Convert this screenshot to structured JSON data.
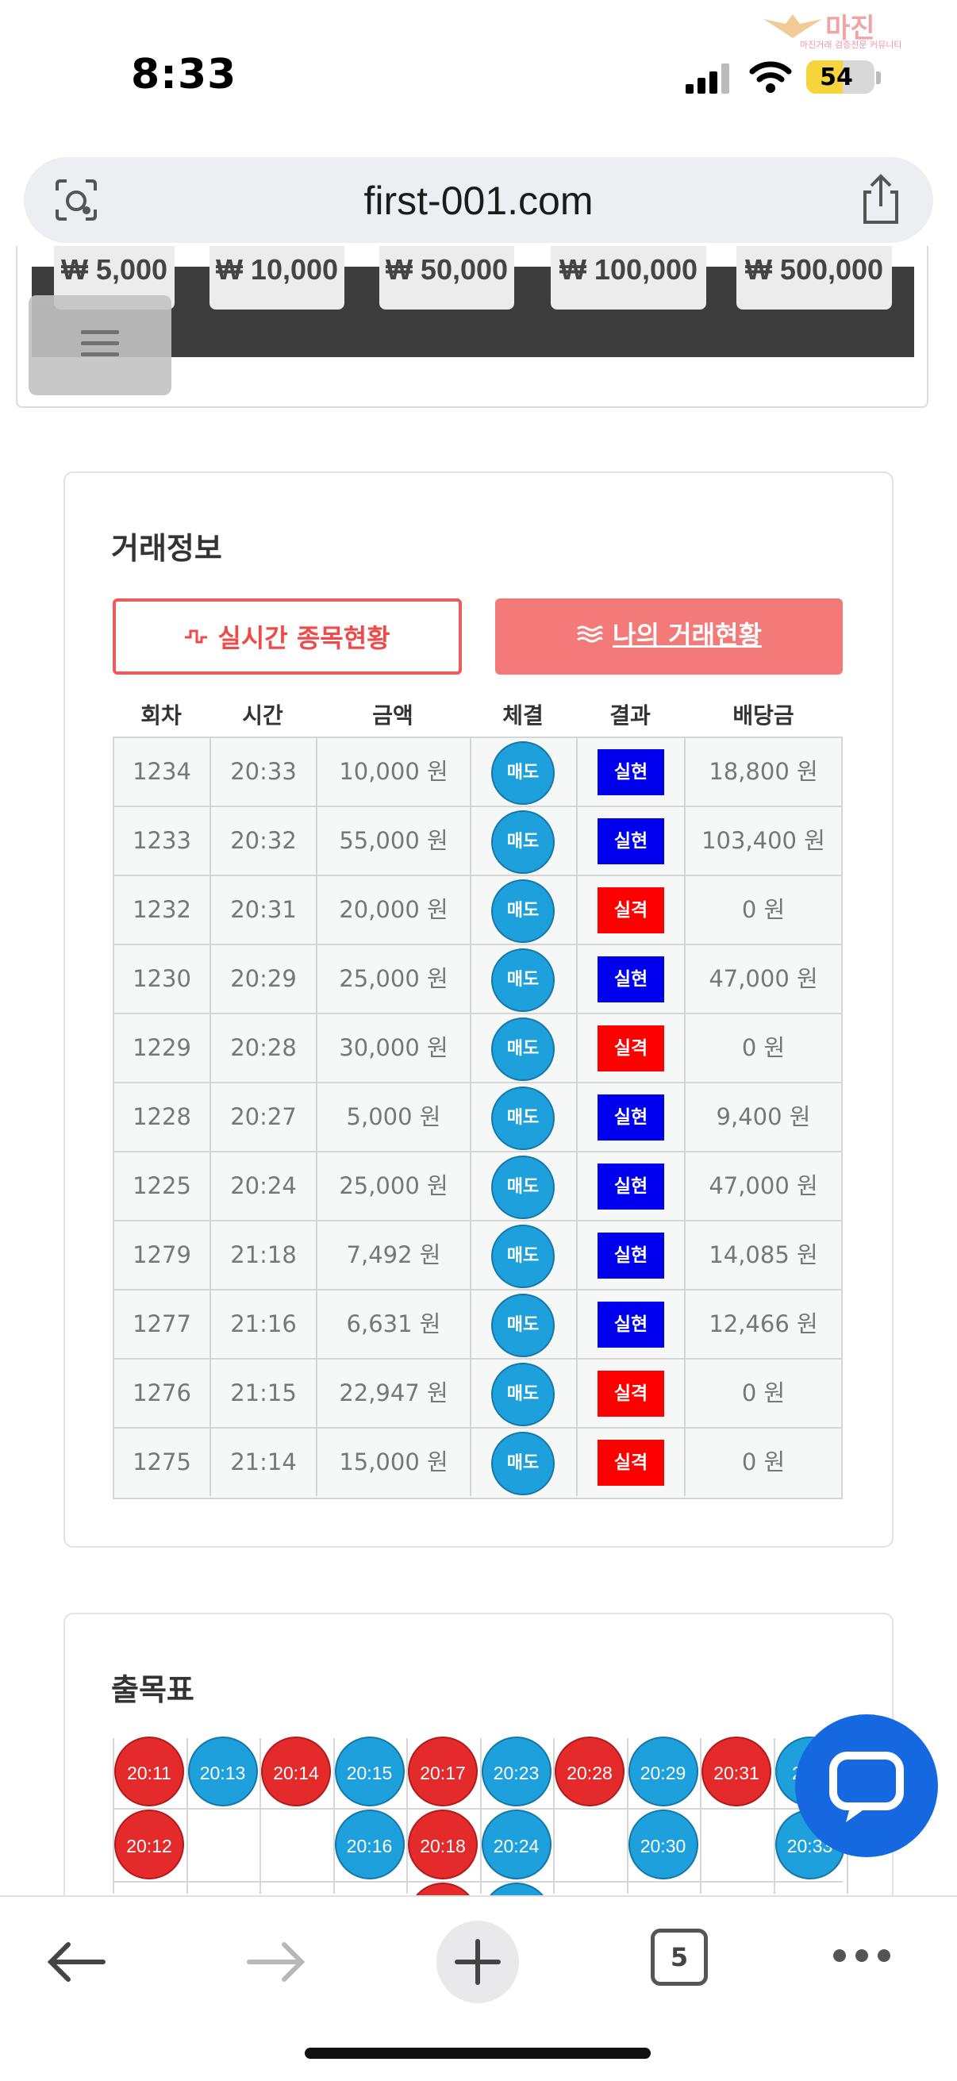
{
  "status_bar": {
    "time": "8:33",
    "battery": "54",
    "battery_level": 0.54
  },
  "watermark": {
    "brand": "마진",
    "tagline": "마진거래 검증전문 커뮤니티"
  },
  "browser": {
    "url": "first-001.com",
    "tab_count": "5"
  },
  "chips": [
    "₩ 5,000",
    "₩ 10,000",
    "₩ 50,000",
    "₩ 100,000",
    "₩ 500,000"
  ],
  "trade_info": {
    "title": "거래정보",
    "tab_live": "실시간 종목현황",
    "tab_mine": "나의 거래현황",
    "headers": [
      "회차",
      "시간",
      "금액",
      "체결",
      "결과",
      "배당금"
    ],
    "rows": [
      {
        "round": "1234",
        "time": "20:33",
        "amount": "10,000 원",
        "fill": "매도",
        "result": "실현",
        "payout": "18,800 원"
      },
      {
        "round": "1233",
        "time": "20:32",
        "amount": "55,000 원",
        "fill": "매도",
        "result": "실현",
        "payout": "103,400 원"
      },
      {
        "round": "1232",
        "time": "20:31",
        "amount": "20,000 원",
        "fill": "매도",
        "result": "실격",
        "payout": "0 원"
      },
      {
        "round": "1230",
        "time": "20:29",
        "amount": "25,000 원",
        "fill": "매도",
        "result": "실현",
        "payout": "47,000 원"
      },
      {
        "round": "1229",
        "time": "20:28",
        "amount": "30,000 원",
        "fill": "매도",
        "result": "실격",
        "payout": "0 원"
      },
      {
        "round": "1228",
        "time": "20:27",
        "amount": "5,000 원",
        "fill": "매도",
        "result": "실현",
        "payout": "9,400 원"
      },
      {
        "round": "1225",
        "time": "20:24",
        "amount": "25,000 원",
        "fill": "매도",
        "result": "실현",
        "payout": "47,000 원"
      },
      {
        "round": "1279",
        "time": "21:18",
        "amount": "7,492 원",
        "fill": "매도",
        "result": "실현",
        "payout": "14,085 원"
      },
      {
        "round": "1277",
        "time": "21:16",
        "amount": "6,631 원",
        "fill": "매도",
        "result": "실현",
        "payout": "12,466 원"
      },
      {
        "round": "1276",
        "time": "21:15",
        "amount": "22,947 원",
        "fill": "매도",
        "result": "실격",
        "payout": "0 원"
      },
      {
        "round": "1275",
        "time": "21:14",
        "amount": "15,000 원",
        "fill": "매도",
        "result": "실격",
        "payout": "0 원"
      }
    ],
    "colors": {
      "realized": "#0000ee",
      "disqualified": "#ff0000",
      "sell": "#1ea0dc"
    }
  },
  "chart_table": {
    "title": "출목표",
    "columns": [
      [
        {
          "label": "20:11",
          "color": "red"
        },
        {
          "label": "20:12",
          "color": "red"
        }
      ],
      [
        {
          "label": "20:13",
          "color": "blue"
        }
      ],
      [
        {
          "label": "20:14",
          "color": "red"
        }
      ],
      [
        {
          "label": "20:15",
          "color": "blue"
        },
        {
          "label": "20:16",
          "color": "blue"
        }
      ],
      [
        {
          "label": "20:17",
          "color": "red"
        },
        {
          "label": "20:18",
          "color": "red"
        },
        {
          "label": "",
          "color": "red"
        }
      ],
      [
        {
          "label": "20:23",
          "color": "blue"
        },
        {
          "label": "20:24",
          "color": "blue"
        },
        {
          "label": "",
          "color": "blue"
        }
      ],
      [
        {
          "label": "20:28",
          "color": "red"
        }
      ],
      [
        {
          "label": "20:29",
          "color": "blue"
        },
        {
          "label": "20:30",
          "color": "blue"
        }
      ],
      [
        {
          "label": "20:31",
          "color": "red"
        }
      ],
      [
        {
          "label": "20:3",
          "color": "blue"
        },
        {
          "label": "20:33",
          "color": "blue"
        }
      ]
    ]
  }
}
